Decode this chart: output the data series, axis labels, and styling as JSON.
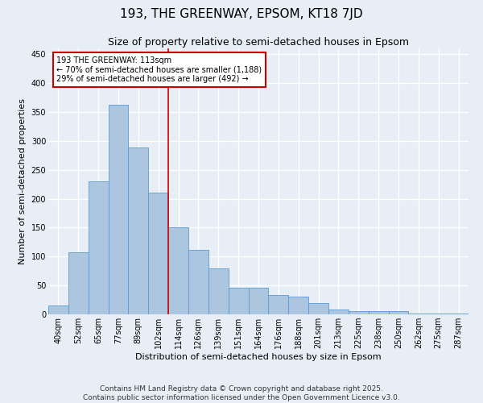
{
  "title1": "193, THE GREENWAY, EPSOM, KT18 7JD",
  "title2": "Size of property relative to semi-detached houses in Epsom",
  "xlabel": "Distribution of semi-detached houses by size in Epsom",
  "ylabel": "Number of semi-detached properties",
  "categories": [
    "40sqm",
    "52sqm",
    "65sqm",
    "77sqm",
    "89sqm",
    "102sqm",
    "114sqm",
    "126sqm",
    "139sqm",
    "151sqm",
    "164sqm",
    "176sqm",
    "188sqm",
    "201sqm",
    "213sqm",
    "225sqm",
    "238sqm",
    "250sqm",
    "262sqm",
    "275sqm",
    "287sqm"
  ],
  "values": [
    15,
    107,
    230,
    362,
    288,
    211,
    150,
    111,
    79,
    46,
    46,
    34,
    30,
    20,
    9,
    5,
    5,
    5,
    2,
    1,
    2
  ],
  "bar_color": "#adc6e0",
  "bar_edge_color": "#5b9bd5",
  "vline_index": 6,
  "annotation_text": "193 THE GREENWAY: 113sqm\n← 70% of semi-detached houses are smaller (1,188)\n29% of semi-detached houses are larger (492) →",
  "annotation_box_color": "#ffffff",
  "annotation_box_edge": "#cc0000",
  "vline_color": "#cc0000",
  "ylim": [
    0,
    460
  ],
  "yticks": [
    0,
    50,
    100,
    150,
    200,
    250,
    300,
    350,
    400,
    450
  ],
  "footer1": "Contains HM Land Registry data © Crown copyright and database right 2025.",
  "footer2": "Contains public sector information licensed under the Open Government Licence v3.0.",
  "background_color": "#e8eef6",
  "plot_background": "#e8eef6",
  "grid_color": "#ffffff",
  "title1_fontsize": 11,
  "title2_fontsize": 9,
  "axis_fontsize": 8,
  "tick_fontsize": 7,
  "footer_fontsize": 6.5
}
